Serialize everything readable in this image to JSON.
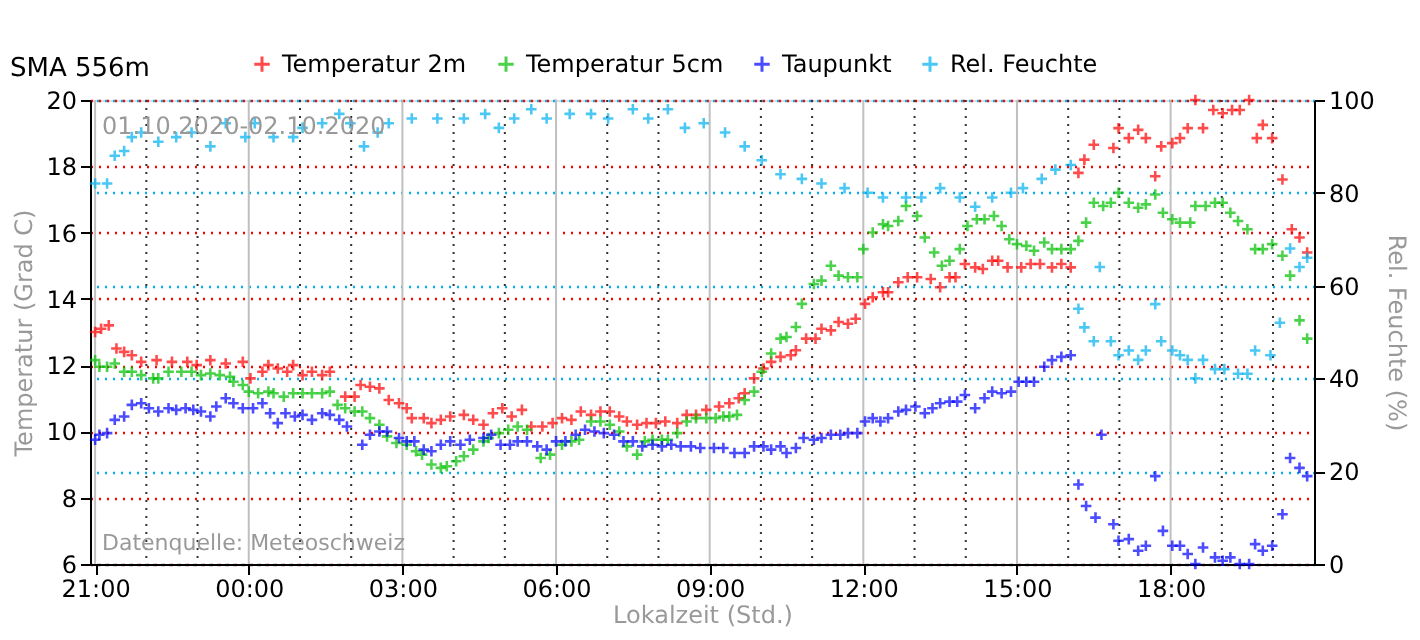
{
  "chart_data": {
    "type": "scatter",
    "title": "SMA   556m",
    "xlabel": "Lokalzeit (Std.)",
    "ylabel": "Temperatur (Grad C)",
    "y2label": "Rel. Feuchte (%)",
    "annotations": [
      "01.10.2020-02.10.2020",
      "Datenquelle: Meteoschweiz"
    ],
    "xlim": [
      "2020-10-01T20:54",
      "2020-10-02T20:48"
    ],
    "xticks": [
      {
        "value": "2020-10-01T21:00",
        "label": "21:00"
      },
      {
        "value": "2020-10-01T22:00",
        "label": null
      },
      {
        "value": "2020-10-01T23:00",
        "label": null
      },
      {
        "value": "2020-10-02T00:00",
        "label": "00:00"
      },
      {
        "value": "2020-10-02T01:00",
        "label": null
      },
      {
        "value": "2020-10-02T02:00",
        "label": null
      },
      {
        "value": "2020-10-02T03:00",
        "label": "03:00"
      },
      {
        "value": "2020-10-02T04:00",
        "label": null
      },
      {
        "value": "2020-10-02T05:00",
        "label": null
      },
      {
        "value": "2020-10-02T06:00",
        "label": "06:00"
      },
      {
        "value": "2020-10-02T07:00",
        "label": null
      },
      {
        "value": "2020-10-02T08:00",
        "label": null
      },
      {
        "value": "2020-10-02T09:00",
        "label": "09:00"
      },
      {
        "value": "2020-10-02T10:00",
        "label": null
      },
      {
        "value": "2020-10-02T11:00",
        "label": null
      },
      {
        "value": "2020-10-02T12:00",
        "label": "12:00"
      },
      {
        "value": "2020-10-02T13:00",
        "label": null
      },
      {
        "value": "2020-10-02T14:00",
        "label": null
      },
      {
        "value": "2020-10-02T15:00",
        "label": "15:00"
      },
      {
        "value": "2020-10-02T16:00",
        "label": null
      },
      {
        "value": "2020-10-02T17:00",
        "label": null
      },
      {
        "value": "2020-10-02T18:00",
        "label": "18:00"
      },
      {
        "value": "2020-10-02T19:00",
        "label": null
      },
      {
        "value": "2020-10-02T20:00",
        "label": null
      }
    ],
    "ylim": [
      6,
      20
    ],
    "yticks": [
      6,
      8,
      10,
      12,
      14,
      16,
      18,
      20
    ],
    "y2lim": [
      0,
      100
    ],
    "y2ticks": [
      0,
      20,
      40,
      60,
      80,
      100
    ],
    "grid": true,
    "legend": "top",
    "marker": "cross",
    "series": [
      {
        "name": "Temperatur 2m",
        "color": "#ff0000",
        "x": [
          "2020-10-01T21:00",
          "2020-10-01T21:07",
          "2020-10-01T21:16",
          "2020-10-01T21:25",
          "2020-10-01T21:34",
          "2020-10-01T21:43",
          "2020-10-01T21:54",
          "2020-10-01T22:12",
          "2020-10-01T22:30",
          "2020-10-01T22:48",
          "2020-10-01T22:59",
          "2020-10-01T23:15",
          "2020-10-01T23:33",
          "2020-10-01T23:53",
          "2020-10-02T00:02",
          "2020-10-02T00:16",
          "2020-10-02T00:23",
          "2020-10-02T00:34",
          "2020-10-02T00:45",
          "2020-10-02T00:52",
          "2020-10-02T01:03",
          "2020-10-02T01:14",
          "2020-10-02T01:26",
          "2020-10-02T01:35",
          "2020-10-02T01:53",
          "2020-10-02T02:04",
          "2020-10-02T02:11",
          "2020-10-02T02:22",
          "2020-10-02T02:33",
          "2020-10-02T02:44",
          "2020-10-02T02:56",
          "2020-10-02T03:05",
          "2020-10-02T03:11",
          "2020-10-02T03:25",
          "2020-10-02T03:34",
          "2020-10-02T03:45",
          "2020-10-02T03:56",
          "2020-10-02T04:12",
          "2020-10-02T04:23",
          "2020-10-02T04:35",
          "2020-10-02T04:46",
          "2020-10-02T04:57",
          "2020-10-02T05:08",
          "2020-10-02T05:20",
          "2020-10-02T05:31",
          "2020-10-02T05:44",
          "2020-10-02T05:56",
          "2020-10-02T06:07",
          "2020-10-02T06:18",
          "2020-10-02T06:29",
          "2020-10-02T06:41",
          "2020-10-02T06:52",
          "2020-10-02T07:03",
          "2020-10-02T07:14",
          "2020-10-02T07:23",
          "2020-10-02T07:35",
          "2020-10-02T07:46",
          "2020-10-02T07:57",
          "2020-10-02T08:08",
          "2020-10-02T08:22",
          "2020-10-02T08:33",
          "2020-10-02T08:44",
          "2020-10-02T08:56",
          "2020-10-02T09:11",
          "2020-10-02T09:23",
          "2020-10-02T09:34",
          "2020-10-02T09:41",
          "2020-10-02T09:52",
          "2020-10-02T10:03",
          "2020-10-02T10:12",
          "2020-10-02T10:23",
          "2020-10-02T10:35",
          "2020-10-02T10:41",
          "2020-10-02T10:53",
          "2020-10-02T11:04",
          "2020-10-02T11:11",
          "2020-10-02T11:22",
          "2020-10-02T11:31",
          "2020-10-02T11:42",
          "2020-10-02T11:51",
          "2020-10-02T12:02",
          "2020-10-02T12:11",
          "2020-10-02T12:23",
          "2020-10-02T12:29",
          "2020-10-02T12:41",
          "2020-10-02T12:52",
          "2020-10-02T13:03",
          "2020-10-02T13:19",
          "2020-10-02T13:30",
          "2020-10-02T13:41",
          "2020-10-02T13:48",
          "2020-10-02T13:59",
          "2020-10-02T14:11",
          "2020-10-02T14:20",
          "2020-10-02T14:31",
          "2020-10-02T14:38",
          "2020-10-02T14:49",
          "2020-10-02T15:05",
          "2020-10-02T15:16",
          "2020-10-02T15:27",
          "2020-10-02T15:41",
          "2020-10-02T15:52",
          "2020-10-02T16:03",
          "2020-10-02T16:12",
          "2020-10-02T16:19",
          "2020-10-02T16:30",
          "2020-10-02T16:53",
          "2020-10-02T16:59",
          "2020-10-02T17:11",
          "2020-10-02T17:22",
          "2020-10-02T17:31",
          "2020-10-02T17:42",
          "2020-10-02T17:49",
          "2020-10-02T18:02",
          "2020-10-02T18:11",
          "2020-10-02T18:20",
          "2020-10-02T18:29",
          "2020-10-02T18:38",
          "2020-10-02T18:50",
          "2020-10-02T19:01",
          "2020-10-02T19:12",
          "2020-10-02T19:21",
          "2020-10-02T19:32",
          "2020-10-02T19:41",
          "2020-10-02T19:48",
          "2020-10-02T19:59",
          "2020-10-02T20:11",
          "2020-10-02T20:22",
          "2020-10-02T20:31",
          "2020-10-02T20:40"
        ],
        "values": [
          13.0,
          13.1,
          13.2,
          12.5,
          12.4,
          12.3,
          12.1,
          12.15,
          12.1,
          12.1,
          12.0,
          12.15,
          12.05,
          12.1,
          11.6,
          11.8,
          12.0,
          11.9,
          11.8,
          12.0,
          11.7,
          11.8,
          11.7,
          11.8,
          11.05,
          11.05,
          11.4,
          11.35,
          11.3,
          10.95,
          10.85,
          10.7,
          10.4,
          10.4,
          10.25,
          10.35,
          10.45,
          10.5,
          10.35,
          10.2,
          10.55,
          10.7,
          10.45,
          10.65,
          10.15,
          10.15,
          10.25,
          10.4,
          10.35,
          10.6,
          10.5,
          10.6,
          10.6,
          10.45,
          10.3,
          10.2,
          10.25,
          10.25,
          10.3,
          10.25,
          10.5,
          10.5,
          10.65,
          10.75,
          10.85,
          11.0,
          11.15,
          11.6,
          11.9,
          12.1,
          12.25,
          12.3,
          12.45,
          12.8,
          12.8,
          13.1,
          13.05,
          13.3,
          13.25,
          13.4,
          13.85,
          14.05,
          14.2,
          14.2,
          14.5,
          14.65,
          14.65,
          14.6,
          14.35,
          14.65,
          14.65,
          15.05,
          14.95,
          14.9,
          15.15,
          15.15,
          14.95,
          14.95,
          15.05,
          15.05,
          14.95,
          15.05,
          14.95,
          17.8,
          18.2,
          18.65,
          18.55,
          19.15,
          18.85,
          19.1,
          18.85,
          17.7,
          18.6,
          18.7,
          18.85,
          19.15,
          20.0,
          19.15,
          19.7,
          19.6,
          19.7,
          19.7,
          20.0,
          18.85,
          19.25,
          18.85,
          17.6,
          16.1,
          15.85,
          15.4
        ]
      },
      {
        "name": "Temperatur 5cm",
        "color": "#00c000",
        "x": [
          "2020-10-01T21:00",
          "2020-10-01T21:05",
          "2020-10-01T21:14",
          "2020-10-01T21:23",
          "2020-10-01T21:34",
          "2020-10-01T21:43",
          "2020-10-01T21:54",
          "2020-10-01T22:08",
          "2020-10-01T22:14",
          "2020-10-01T22:26",
          "2020-10-01T22:41",
          "2020-10-01T22:53",
          "2020-10-01T23:04",
          "2020-10-01T23:15",
          "2020-10-01T23:26",
          "2020-10-01T23:38",
          "2020-10-01T23:42",
          "2020-10-01T23:53",
          "2020-10-02T00:00",
          "2020-10-02T00:11",
          "2020-10-02T00:23",
          "2020-10-02T00:29",
          "2020-10-02T00:41",
          "2020-10-02T00:52",
          "2020-10-02T01:03",
          "2020-10-02T01:14",
          "2020-10-02T01:26",
          "2020-10-02T01:35",
          "2020-10-02T01:44",
          "2020-10-02T01:53",
          "2020-10-02T02:04",
          "2020-10-02T02:13",
          "2020-10-02T02:22",
          "2020-10-02T02:33",
          "2020-10-02T02:42",
          "2020-10-02T02:53",
          "2020-10-02T03:05",
          "2020-10-02T03:16",
          "2020-10-02T03:23",
          "2020-10-02T03:34",
          "2020-10-02T03:45",
          "2020-10-02T03:52",
          "2020-10-02T04:03",
          "2020-10-02T04:12",
          "2020-10-02T04:23",
          "2020-10-02T04:35",
          "2020-10-02T04:41",
          "2020-10-02T04:53",
          "2020-10-02T05:04",
          "2020-10-02T05:15",
          "2020-10-02T05:26",
          "2020-10-02T05:42",
          "2020-10-02T05:53",
          "2020-10-02T06:07",
          "2020-10-02T06:18",
          "2020-10-02T06:27",
          "2020-10-02T06:41",
          "2020-10-02T06:52",
          "2020-10-02T07:03",
          "2020-10-02T07:14",
          "2020-10-02T07:23",
          "2020-10-02T07:35",
          "2020-10-02T07:44",
          "2020-10-02T07:53",
          "2020-10-02T08:04",
          "2020-10-02T08:11",
          "2020-10-02T08:22",
          "2020-10-02T08:33",
          "2020-10-02T08:44",
          "2020-10-02T08:56",
          "2020-10-02T09:07",
          "2020-10-02T09:16",
          "2020-10-02T09:23",
          "2020-10-02T09:32",
          "2020-10-02T09:41",
          "2020-10-02T09:52",
          "2020-10-02T10:01",
          "2020-10-02T10:12",
          "2020-10-02T10:23",
          "2020-10-02T10:30",
          "2020-10-02T10:41",
          "2020-10-02T10:48",
          "2020-10-02T11:02",
          "2020-10-02T11:11",
          "2020-10-02T11:22",
          "2020-10-02T11:31",
          "2020-10-02T11:42",
          "2020-10-02T11:53",
          "2020-10-02T12:00",
          "2020-10-02T12:11",
          "2020-10-02T12:23",
          "2020-10-02T12:29",
          "2020-10-02T12:41",
          "2020-10-02T12:50",
          "2020-10-02T13:03",
          "2020-10-02T13:12",
          "2020-10-02T13:23",
          "2020-10-02T13:32",
          "2020-10-02T13:41",
          "2020-10-02T13:53",
          "2020-10-02T14:02",
          "2020-10-02T14:13",
          "2020-10-02T14:22",
          "2020-10-02T14:33",
          "2020-10-02T14:42",
          "2020-10-02T14:51",
          "2020-10-02T15:00",
          "2020-10-02T15:11",
          "2020-10-02T15:20",
          "2020-10-02T15:32",
          "2020-10-02T15:41",
          "2020-10-02T15:52",
          "2020-10-02T16:03",
          "2020-10-02T16:12",
          "2020-10-02T16:21",
          "2020-10-02T16:30",
          "2020-10-02T16:41",
          "2020-10-02T16:50",
          "2020-10-02T16:59",
          "2020-10-02T17:11",
          "2020-10-02T17:22",
          "2020-10-02T17:31",
          "2020-10-02T17:42",
          "2020-10-02T17:51",
          "2020-10-02T18:02",
          "2020-10-02T18:11",
          "2020-10-02T18:23",
          "2020-10-02T18:29",
          "2020-10-02T18:41",
          "2020-10-02T18:52",
          "2020-10-02T19:01",
          "2020-10-02T19:10",
          "2020-10-02T19:19",
          "2020-10-02T19:30",
          "2020-10-02T19:39",
          "2020-10-02T19:48",
          "2020-10-02T19:59",
          "2020-10-02T20:11",
          "2020-10-02T20:20",
          "2020-10-02T20:31",
          "2020-10-02T20:40"
        ],
        "values": [
          12.15,
          11.95,
          11.95,
          12.05,
          11.8,
          11.8,
          11.7,
          11.6,
          11.6,
          11.8,
          11.8,
          11.8,
          11.7,
          11.75,
          11.7,
          11.65,
          11.5,
          11.4,
          11.2,
          11.15,
          11.2,
          11.15,
          11.05,
          11.15,
          11.15,
          11.15,
          11.15,
          11.2,
          10.8,
          10.7,
          10.6,
          10.6,
          10.4,
          10.2,
          9.85,
          9.65,
          9.6,
          9.4,
          9.3,
          9.0,
          8.9,
          8.95,
          9.1,
          9.25,
          9.45,
          9.7,
          9.8,
          9.95,
          10.05,
          10.15,
          10.05,
          9.2,
          9.3,
          9.6,
          9.7,
          9.75,
          10.3,
          10.3,
          10.2,
          10.0,
          9.55,
          9.3,
          9.7,
          9.75,
          9.75,
          9.75,
          9.95,
          10.3,
          10.4,
          10.4,
          10.4,
          10.45,
          10.45,
          10.5,
          10.95,
          11.2,
          11.8,
          12.35,
          12.8,
          12.85,
          13.15,
          13.85,
          14.45,
          14.55,
          15.0,
          14.7,
          14.65,
          14.65,
          15.5,
          16.0,
          16.25,
          16.2,
          16.35,
          16.8,
          16.5,
          15.85,
          15.4,
          15.0,
          15.15,
          15.5,
          16.2,
          16.4,
          16.4,
          16.5,
          16.2,
          15.8,
          15.65,
          15.6,
          15.45,
          15.7,
          15.5,
          15.5,
          15.5,
          15.75,
          16.3,
          16.9,
          16.8,
          16.9,
          17.2,
          16.9,
          16.75,
          16.85,
          17.15,
          16.6,
          16.4,
          16.3,
          16.3,
          16.8,
          16.8,
          16.9,
          16.9,
          16.6,
          16.35,
          16.1,
          15.5,
          15.5,
          15.65,
          15.3,
          14.7,
          13.35,
          12.8
        ]
      },
      {
        "name": "Taupunkt",
        "color": "#0000ff",
        "x": [
          "2020-10-01T21:00",
          "2020-10-01T21:05",
          "2020-10-01T21:14",
          "2020-10-01T21:23",
          "2020-10-01T21:34",
          "2020-10-01T21:43",
          "2020-10-01T21:54",
          "2020-10-01T22:03",
          "2020-10-01T22:14",
          "2020-10-01T22:26",
          "2020-10-01T22:35",
          "2020-10-01T22:46",
          "2020-10-01T22:55",
          "2020-10-01T23:04",
          "2020-10-01T23:15",
          "2020-10-01T23:22",
          "2020-10-01T23:33",
          "2020-10-01T23:42",
          "2020-10-01T23:53",
          "2020-10-02T00:05",
          "2020-10-02T00:16",
          "2020-10-02T00:25",
          "2020-10-02T00:34",
          "2020-10-02T00:43",
          "2020-10-02T00:54",
          "2020-10-02T01:03",
          "2020-10-02T01:14",
          "2020-10-02T01:26",
          "2020-10-02T01:35",
          "2020-10-02T01:46",
          "2020-10-02T01:55",
          "2020-10-02T02:13",
          "2020-10-02T02:22",
          "2020-10-02T02:33",
          "2020-10-02T02:42",
          "2020-10-02T02:56",
          "2020-10-02T03:05",
          "2020-10-02T03:14",
          "2020-10-02T03:25",
          "2020-10-02T03:34",
          "2020-10-02T03:45",
          "2020-10-02T03:56",
          "2020-10-02T04:08",
          "2020-10-02T04:19",
          "2020-10-02T04:35",
          "2020-10-02T04:44",
          "2020-10-02T04:55",
          "2020-10-02T05:06",
          "2020-10-02T05:15",
          "2020-10-02T05:26",
          "2020-10-02T05:38",
          "2020-10-02T05:49",
          "2020-10-02T06:00",
          "2020-10-02T06:11",
          "2020-10-02T06:23",
          "2020-10-02T06:34",
          "2020-10-02T06:45",
          "2020-10-02T06:56",
          "2020-10-02T07:08",
          "2020-10-02T07:19",
          "2020-10-02T07:30",
          "2020-10-02T07:41",
          "2020-10-02T07:53",
          "2020-10-02T08:04",
          "2020-10-02T08:15",
          "2020-10-02T08:26",
          "2020-10-02T08:38",
          "2020-10-02T08:49",
          "2020-10-02T09:05",
          "2020-10-02T09:16",
          "2020-10-02T09:29",
          "2020-10-02T09:41",
          "2020-10-02T09:52",
          "2020-10-02T10:03",
          "2020-10-02T10:12",
          "2020-10-02T10:23",
          "2020-10-02T10:30",
          "2020-10-02T10:41",
          "2020-10-02T10:50",
          "2020-10-02T11:02",
          "2020-10-02T11:11",
          "2020-10-02T11:22",
          "2020-10-02T11:33",
          "2020-10-02T11:42",
          "2020-10-02T11:53",
          "2020-10-02T12:02",
          "2020-10-02T12:11",
          "2020-10-02T12:20",
          "2020-10-02T12:29",
          "2020-10-02T12:41",
          "2020-10-02T12:50",
          "2020-10-02T13:01",
          "2020-10-02T13:12",
          "2020-10-02T13:21",
          "2020-10-02T13:30",
          "2020-10-02T13:41",
          "2020-10-02T13:50",
          "2020-10-02T13:59",
          "2020-10-02T14:11",
          "2020-10-02T14:22",
          "2020-10-02T14:31",
          "2020-10-02T14:42",
          "2020-10-02T14:53",
          "2020-10-02T15:02",
          "2020-10-02T15:11",
          "2020-10-02T15:20",
          "2020-10-02T15:32",
          "2020-10-02T15:41",
          "2020-10-02T15:52",
          "2020-10-02T16:03",
          "2020-10-02T16:12",
          "2020-10-02T16:21",
          "2020-10-02T16:32",
          "2020-10-02T16:39",
          "2020-10-02T16:53",
          "2020-10-02T16:59",
          "2020-10-02T17:11",
          "2020-10-02T17:22",
          "2020-10-02T17:31",
          "2020-10-02T17:42",
          "2020-10-02T17:51",
          "2020-10-02T18:02",
          "2020-10-02T18:11",
          "2020-10-02T18:20",
          "2020-10-02T18:29",
          "2020-10-02T18:38",
          "2020-10-02T18:52",
          "2020-10-02T19:01",
          "2020-10-02T19:10",
          "2020-10-02T19:21",
          "2020-10-02T19:32",
          "2020-10-02T19:39",
          "2020-10-02T19:48",
          "2020-10-02T19:59",
          "2020-10-02T20:11",
          "2020-10-02T20:20",
          "2020-10-02T20:31",
          "2020-10-02T20:40"
        ],
        "values": [
          9.75,
          9.9,
          9.95,
          10.35,
          10.45,
          10.8,
          10.85,
          10.7,
          10.6,
          10.7,
          10.65,
          10.7,
          10.65,
          10.6,
          10.45,
          10.75,
          11.0,
          10.85,
          10.7,
          10.7,
          10.85,
          10.55,
          10.25,
          10.55,
          10.45,
          10.5,
          10.35,
          10.55,
          10.5,
          10.35,
          10.15,
          9.6,
          9.9,
          10.0,
          10.0,
          9.8,
          9.7,
          9.7,
          9.45,
          9.4,
          9.6,
          9.7,
          9.6,
          9.75,
          9.8,
          9.9,
          9.6,
          9.6,
          9.7,
          9.7,
          9.55,
          9.45,
          9.7,
          9.7,
          9.9,
          10.05,
          10.0,
          9.95,
          9.9,
          9.7,
          9.7,
          9.55,
          9.6,
          9.55,
          9.6,
          9.55,
          9.55,
          9.5,
          9.5,
          9.5,
          9.35,
          9.35,
          9.55,
          9.55,
          9.45,
          9.55,
          9.35,
          9.5,
          9.8,
          9.75,
          9.8,
          9.9,
          9.9,
          9.95,
          9.95,
          10.3,
          10.4,
          10.3,
          10.4,
          10.6,
          10.65,
          10.75,
          10.55,
          10.7,
          10.85,
          10.9,
          10.9,
          11.1,
          10.7,
          11.0,
          11.2,
          11.15,
          11.2,
          11.5,
          11.5,
          11.5,
          11.95,
          12.15,
          12.25,
          12.3,
          8.4,
          7.75,
          7.4,
          9.9,
          7.2,
          6.7,
          6.75,
          6.4,
          6.55,
          8.65,
          7.0,
          6.55,
          6.55,
          6.3,
          6.0,
          6.5,
          6.2,
          6.1,
          6.2,
          6.0,
          6.0,
          6.6,
          6.4,
          6.55,
          7.5,
          9.2,
          8.9,
          8.65
        ]
      },
      {
        "name": "Rel. Feuchte",
        "color": "#00b0f0",
        "axis": "y2",
        "x": [
          "2020-10-01T21:00",
          "2020-10-01T21:14",
          "2020-10-01T21:23",
          "2020-10-01T21:34",
          "2020-10-01T21:43",
          "2020-10-01T21:54",
          "2020-10-01T22:14",
          "2020-10-01T22:35",
          "2020-10-01T22:53",
          "2020-10-01T23:15",
          "2020-10-01T23:33",
          "2020-10-01T23:56",
          "2020-10-02T00:07",
          "2020-10-02T00:29",
          "2020-10-02T00:52",
          "2020-10-02T01:03",
          "2020-10-02T01:26",
          "2020-10-02T01:46",
          "2020-10-02T01:59",
          "2020-10-02T02:15",
          "2020-10-02T02:31",
          "2020-10-02T02:44",
          "2020-10-02T03:11",
          "2020-10-02T03:41",
          "2020-10-02T04:12",
          "2020-10-02T04:37",
          "2020-10-02T04:53",
          "2020-10-02T05:11",
          "2020-10-02T05:31",
          "2020-10-02T05:49",
          "2020-10-02T06:16",
          "2020-10-02T06:41",
          "2020-10-02T07:01",
          "2020-10-02T07:30",
          "2020-10-02T07:48",
          "2020-10-02T08:11",
          "2020-10-02T08:31",
          "2020-10-02T08:53",
          "2020-10-02T09:18",
          "2020-10-02T09:41",
          "2020-10-02T10:01",
          "2020-10-02T10:23",
          "2020-10-02T10:48",
          "2020-10-02T11:11",
          "2020-10-02T11:38",
          "2020-10-02T12:05",
          "2020-10-02T12:23",
          "2020-10-02T12:50",
          "2020-10-02T13:08",
          "2020-10-02T13:30",
          "2020-10-02T13:53",
          "2020-10-02T14:11",
          "2020-10-02T14:31",
          "2020-10-02T14:53",
          "2020-10-02T15:07",
          "2020-10-02T15:29",
          "2020-10-02T15:45",
          "2020-10-02T16:03",
          "2020-10-02T16:12",
          "2020-10-02T16:19",
          "2020-10-02T16:30",
          "2020-10-02T16:37",
          "2020-10-02T16:50",
          "2020-10-02T16:59",
          "2020-10-02T17:11",
          "2020-10-02T17:22",
          "2020-10-02T17:31",
          "2020-10-02T17:42",
          "2020-10-02T17:49",
          "2020-10-02T18:02",
          "2020-10-02T18:11",
          "2020-10-02T18:20",
          "2020-10-02T18:29",
          "2020-10-02T18:38",
          "2020-10-02T18:52",
          "2020-10-02T19:03",
          "2020-10-02T19:19",
          "2020-10-02T19:30",
          "2020-10-02T19:39",
          "2020-10-02T19:57",
          "2020-10-02T20:08",
          "2020-10-02T20:20",
          "2020-10-02T20:31",
          "2020-10-02T20:40"
        ],
        "values": [
          82,
          82,
          88,
          89,
          92,
          93,
          91,
          92,
          93,
          90,
          95,
          92,
          95,
          92,
          92,
          94,
          95,
          97,
          95,
          90,
          93,
          95,
          96,
          96,
          96,
          97,
          94,
          96,
          98,
          96,
          97,
          97,
          96,
          98,
          96,
          98,
          94,
          95,
          93,
          90,
          87,
          84,
          83,
          82,
          81,
          80,
          79,
          79,
          79,
          81,
          79,
          77,
          79,
          80,
          81,
          83,
          85,
          86,
          55,
          51,
          48,
          64,
          48,
          45,
          46,
          44,
          46,
          56,
          48,
          46,
          45,
          44,
          40,
          44,
          42,
          42,
          41,
          41,
          46,
          45,
          52,
          68,
          64,
          66
        ]
      }
    ]
  }
}
